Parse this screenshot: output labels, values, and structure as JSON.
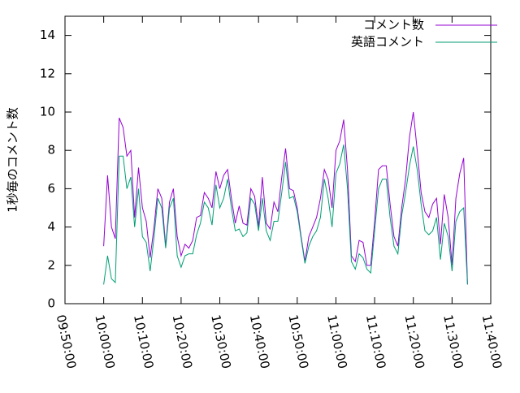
{
  "chart_data": {
    "type": "line",
    "ylabel": "1秒毎のコメント数",
    "x": [
      "10:00:00",
      "10:01:00",
      "10:02:00",
      "10:03:00",
      "10:04:00",
      "10:05:00",
      "10:06:00",
      "10:07:00",
      "10:08:00",
      "10:09:00",
      "10:10:00",
      "10:11:00",
      "10:12:00",
      "10:13:00",
      "10:14:00",
      "10:15:00",
      "10:16:00",
      "10:17:00",
      "10:18:00",
      "10:19:00",
      "10:20:00",
      "10:21:00",
      "10:22:00",
      "10:23:00",
      "10:24:00",
      "10:25:00",
      "10:26:00",
      "10:27:00",
      "10:28:00",
      "10:29:00",
      "10:30:00",
      "10:31:00",
      "10:32:00",
      "10:33:00",
      "10:34:00",
      "10:35:00",
      "10:36:00",
      "10:37:00",
      "10:38:00",
      "10:39:00",
      "10:40:00",
      "10:41:00",
      "10:42:00",
      "10:43:00",
      "10:44:00",
      "10:45:00",
      "10:46:00",
      "10:47:00",
      "10:48:00",
      "10:49:00",
      "10:50:00",
      "10:51:00",
      "10:52:00",
      "10:53:00",
      "10:54:00",
      "10:55:00",
      "10:56:00",
      "10:57:00",
      "10:58:00",
      "10:59:00",
      "11:00:00",
      "11:01:00",
      "11:02:00",
      "11:03:00",
      "11:04:00",
      "11:05:00",
      "11:06:00",
      "11:07:00",
      "11:08:00",
      "11:09:00",
      "11:10:00",
      "11:11:00",
      "11:12:00",
      "11:13:00",
      "11:14:00",
      "11:15:00",
      "11:16:00",
      "11:17:00",
      "11:18:00",
      "11:19:00",
      "11:20:00",
      "11:21:00",
      "11:22:00",
      "11:23:00",
      "11:24:00",
      "11:25:00",
      "11:26:00",
      "11:27:00",
      "11:28:00",
      "11:29:00",
      "11:30:00",
      "11:31:00",
      "11:32:00",
      "11:33:00",
      "11:34:00"
    ],
    "series": [
      {
        "name": "コメント数",
        "color": "#9400d3",
        "values": [
          3.0,
          6.7,
          4.0,
          3.4,
          9.7,
          9.2,
          7.7,
          8.0,
          4.5,
          7.1,
          5.0,
          4.3,
          2.4,
          4.0,
          6.0,
          5.5,
          3.0,
          5.3,
          6.0,
          3.5,
          2.5,
          3.1,
          2.9,
          3.3,
          4.5,
          4.6,
          5.8,
          5.5,
          5.0,
          6.9,
          6.0,
          6.7,
          7.0,
          5.5,
          4.2,
          5.1,
          4.2,
          4.1,
          6.0,
          5.6,
          4.0,
          6.6,
          4.2,
          3.9,
          5.3,
          4.8,
          6.6,
          8.1,
          6.0,
          5.9,
          5.0,
          3.5,
          2.2,
          3.5,
          4.0,
          4.5,
          5.5,
          7.0,
          6.5,
          5.0,
          8.0,
          8.5,
          9.6,
          7.0,
          2.5,
          2.2,
          3.3,
          3.2,
          2.0,
          2.0,
          4.3,
          7.0,
          7.2,
          7.2,
          5.2,
          3.5,
          3.0,
          5.0,
          6.5,
          8.7,
          10.0,
          8.0,
          5.8,
          4.8,
          4.5,
          5.2,
          5.5,
          3.1,
          5.7,
          4.5,
          2.0,
          5.5,
          6.8,
          7.6,
          1.0
        ]
      },
      {
        "name": "英語コメント",
        "color": "#009e73",
        "values": [
          1.0,
          2.5,
          1.3,
          1.1,
          7.7,
          7.7,
          6.0,
          6.6,
          4.0,
          6.0,
          3.5,
          3.2,
          1.7,
          3.5,
          5.5,
          5.0,
          2.9,
          5.0,
          5.5,
          2.5,
          1.9,
          2.5,
          2.6,
          2.6,
          3.6,
          4.2,
          5.3,
          5.0,
          4.1,
          6.2,
          5.0,
          5.5,
          6.5,
          5.0,
          3.8,
          3.9,
          3.5,
          3.7,
          5.5,
          5.2,
          3.8,
          5.5,
          3.8,
          3.3,
          4.3,
          4.3,
          5.8,
          7.4,
          5.5,
          5.6,
          4.8,
          3.4,
          2.1,
          3.0,
          3.5,
          3.8,
          4.5,
          6.5,
          5.5,
          4.0,
          6.8,
          7.3,
          8.3,
          6.0,
          2.2,
          1.8,
          2.6,
          2.4,
          1.8,
          1.6,
          3.8,
          6.0,
          6.5,
          6.5,
          4.5,
          3.0,
          2.6,
          4.6,
          5.8,
          7.2,
          8.2,
          7.0,
          5.2,
          3.8,
          3.6,
          3.8,
          4.5,
          2.3,
          4.2,
          3.5,
          1.7,
          4.3,
          4.8,
          5.0,
          1.0
        ]
      }
    ],
    "xlim": [
      "09:50:00",
      "11:40:00"
    ],
    "xticks": [
      "09:50:00",
      "10:00:00",
      "10:10:00",
      "10:20:00",
      "10:30:00",
      "10:40:00",
      "10:50:00",
      "11:00:00",
      "11:10:00",
      "11:20:00",
      "11:30:00",
      "11:40:00"
    ],
    "ylim": [
      0,
      15
    ],
    "yticks": [
      0,
      2,
      4,
      6,
      8,
      10,
      12,
      14
    ],
    "legend": "top-right"
  }
}
